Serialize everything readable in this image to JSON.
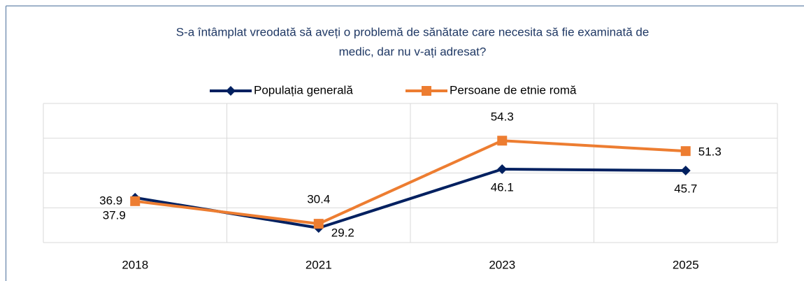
{
  "chart_data": {
    "type": "line",
    "title": [
      "S-a întâmplat vreodată să aveți o problemă de sănătate care necesita să fie examinată de",
      "medic, dar nu v-ați adresat?"
    ],
    "categories": [
      "2018",
      "2021",
      "2023",
      "2025"
    ],
    "series": [
      {
        "name": "Populația generală",
        "color": "#002060",
        "marker": "diamond",
        "values": [
          37.9,
          29.2,
          46.1,
          45.7
        ]
      },
      {
        "name": "Persoane de etnie romă",
        "color": "#ed7d31",
        "marker": "square",
        "values": [
          36.9,
          30.4,
          54.3,
          51.3
        ]
      }
    ],
    "ylim": [
      25,
      65
    ],
    "yticks": [
      25,
      35,
      45,
      55,
      65
    ],
    "grid": true,
    "legend": "top"
  }
}
